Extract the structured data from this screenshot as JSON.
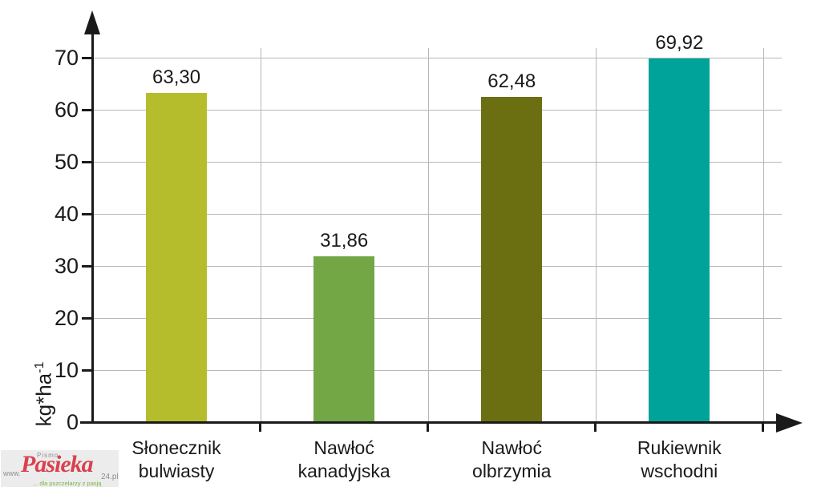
{
  "chart_data": {
    "type": "bar",
    "title": "",
    "categories": [
      "Słonecznik bulwiasty",
      "Nawłoć kanadyjska",
      "Nawłoć olbrzymia",
      "Rukiewnik wschodni"
    ],
    "category_lines": [
      [
        "Słonecznik",
        "bulwiasty"
      ],
      [
        "Nawłoć",
        "kanadyjska"
      ],
      [
        "Nawłoć",
        "olbrzymia"
      ],
      [
        "Rukiewnik",
        "wschodni"
      ]
    ],
    "values": [
      63.3,
      31.86,
      62.48,
      69.92
    ],
    "value_labels": [
      "63,30",
      "31,86",
      "62,48",
      "69,92"
    ],
    "bar_colors": [
      "#b6bd2c",
      "#73a745",
      "#6b6f12",
      "#00a39a"
    ],
    "xlabel": "",
    "ylabel_base": "kg*ha",
    "ylabel_exponent": "-1",
    "yticks": [
      0,
      10,
      20,
      30,
      40,
      50,
      60,
      70
    ],
    "ylim": [
      0,
      75
    ],
    "grid": true,
    "legend": false,
    "decimal_separator": ","
  },
  "colors": {
    "axis": "#1a1a1a",
    "gridline": "#b7b7b7",
    "text": "#1a1a1a",
    "background": "#ffffff",
    "watermark_background": "#ececec"
  },
  "watermark": {
    "top_label": "Pismo",
    "www_prefix": "www.",
    "brand": "Pasieka",
    "brand_suffix": "24.pl",
    "tagline": "... dla pszczelarzy z pasją",
    "brand_color": "#d8414e",
    "tagline_color": "#7cb342"
  }
}
